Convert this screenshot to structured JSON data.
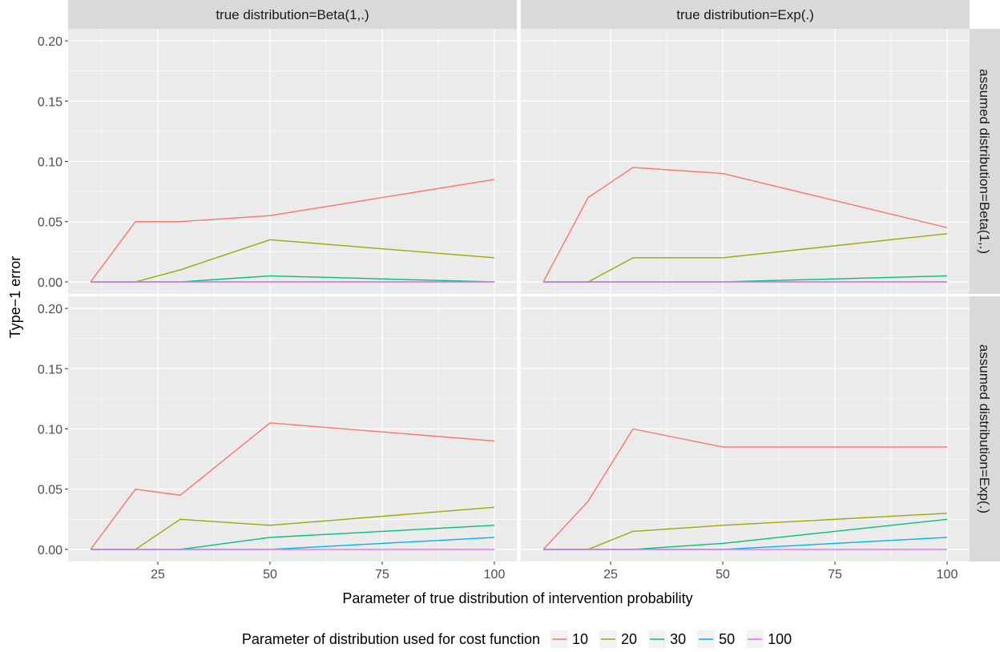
{
  "chart_data": {
    "type": "line",
    "xlabel": "Parameter of true distribution of intervention probability",
    "ylabel": "Type−1 error",
    "xlim": [
      5,
      105
    ],
    "ylim": [
      -0.01,
      0.21
    ],
    "x_ticks": [
      25,
      50,
      75,
      100
    ],
    "x_tick_labels": [
      "25",
      "50",
      "75",
      "100"
    ],
    "y_ticks": [
      0.0,
      0.05,
      0.1,
      0.15,
      0.2
    ],
    "y_tick_labels": [
      "0.00",
      "0.05",
      "0.10",
      "0.15",
      "0.20"
    ],
    "grid": true,
    "legend": {
      "title": "Parameter of distribution used for cost function",
      "position": "bottom",
      "entries": [
        {
          "label": "10",
          "color": "#F8766D"
        },
        {
          "label": "20",
          "color": "#A3A500"
        },
        {
          "label": "30",
          "color": "#00BF7D"
        },
        {
          "label": "50",
          "color": "#00B0F6"
        },
        {
          "label": "100",
          "color": "#E76BF3"
        }
      ]
    },
    "column_strips": [
      "true distribution=Beta(1,.)",
      "true distribution=Exp(.)"
    ],
    "row_strips": [
      "assumed distribution=Beta(1,.)",
      "assumed distribution=Exp(.)"
    ],
    "x": [
      10,
      20,
      30,
      50,
      100
    ],
    "panels": [
      {
        "row": 0,
        "col": 0,
        "series": [
          {
            "name": "10",
            "values": [
              0.0,
              0.05,
              0.05,
              0.055,
              0.085
            ]
          },
          {
            "name": "20",
            "values": [
              0.0,
              0.0,
              0.01,
              0.035,
              0.02
            ]
          },
          {
            "name": "30",
            "values": [
              0.0,
              0.0,
              0.0,
              0.005,
              0.0
            ]
          },
          {
            "name": "50",
            "values": [
              0.0,
              0.0,
              0.0,
              0.0,
              0.0
            ]
          },
          {
            "name": "100",
            "values": [
              0.0,
              0.0,
              0.0,
              0.0,
              0.0
            ]
          }
        ]
      },
      {
        "row": 0,
        "col": 1,
        "series": [
          {
            "name": "10",
            "values": [
              0.0,
              0.07,
              0.095,
              0.09,
              0.045
            ]
          },
          {
            "name": "20",
            "values": [
              0.0,
              0.0,
              0.02,
              0.02,
              0.04
            ]
          },
          {
            "name": "30",
            "values": [
              0.0,
              0.0,
              0.0,
              0.0,
              0.005
            ]
          },
          {
            "name": "50",
            "values": [
              0.0,
              0.0,
              0.0,
              0.0,
              0.0
            ]
          },
          {
            "name": "100",
            "values": [
              0.0,
              0.0,
              0.0,
              0.0,
              0.0
            ]
          }
        ]
      },
      {
        "row": 1,
        "col": 0,
        "series": [
          {
            "name": "10",
            "values": [
              0.0,
              0.05,
              0.045,
              0.105,
              0.09
            ]
          },
          {
            "name": "20",
            "values": [
              0.0,
              0.0,
              0.025,
              0.02,
              0.035
            ]
          },
          {
            "name": "30",
            "values": [
              0.0,
              0.0,
              0.0,
              0.01,
              0.02
            ]
          },
          {
            "name": "50",
            "values": [
              0.0,
              0.0,
              0.0,
              0.0,
              0.01
            ]
          },
          {
            "name": "100",
            "values": [
              0.0,
              0.0,
              0.0,
              0.0,
              0.0
            ]
          }
        ]
      },
      {
        "row": 1,
        "col": 1,
        "series": [
          {
            "name": "10",
            "values": [
              0.0,
              0.04,
              0.1,
              0.085,
              0.085
            ]
          },
          {
            "name": "20",
            "values": [
              0.0,
              0.0,
              0.015,
              0.02,
              0.03
            ]
          },
          {
            "name": "30",
            "values": [
              0.0,
              0.0,
              0.0,
              0.005,
              0.025
            ]
          },
          {
            "name": "50",
            "values": [
              0.0,
              0.0,
              0.0,
              0.0,
              0.01
            ]
          },
          {
            "name": "100",
            "values": [
              0.0,
              0.0,
              0.0,
              0.0,
              0.0
            ]
          }
        ]
      }
    ]
  }
}
